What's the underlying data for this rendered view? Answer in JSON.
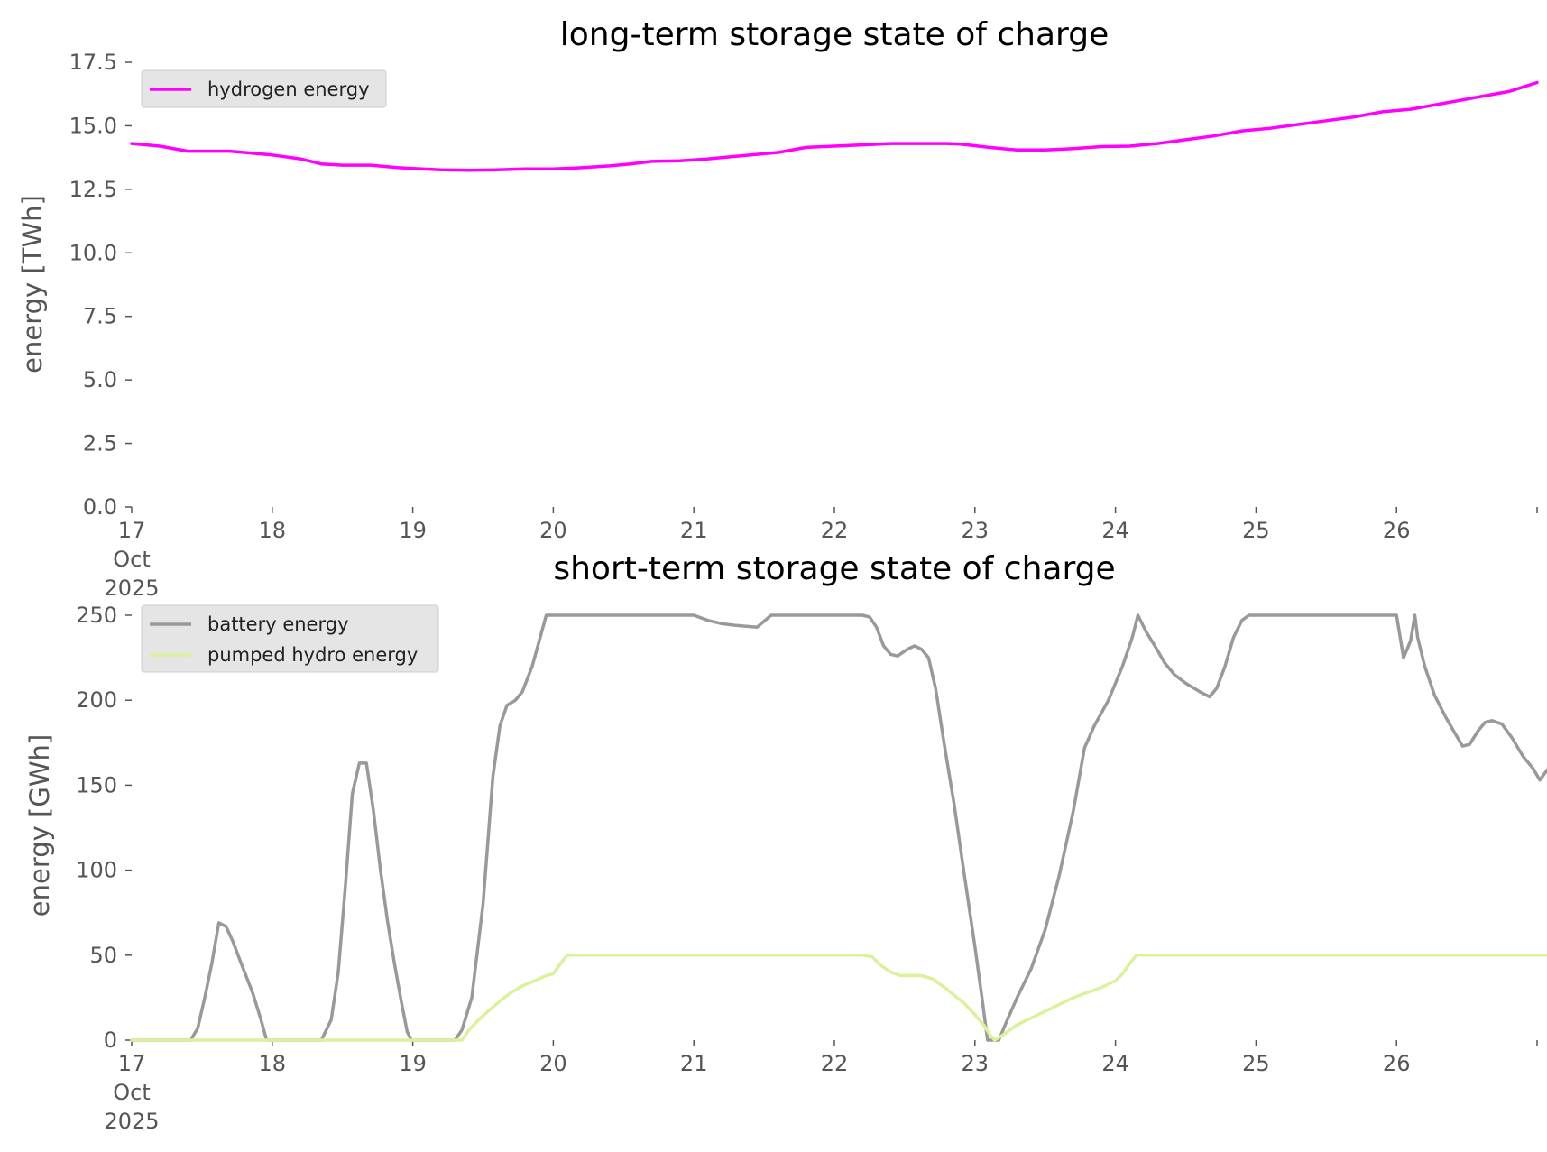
{
  "chart_data": [
    {
      "type": "line",
      "title": "long-term storage state of charge",
      "ylabel": "energy [TWh]",
      "xlabel": "",
      "x_range_days": [
        "2025-10-17",
        "2025-10-27"
      ],
      "xticks": [
        {
          "day": 0,
          "label": "17",
          "sublabels": [
            "Oct",
            "2025"
          ]
        },
        {
          "day": 1,
          "label": "18"
        },
        {
          "day": 2,
          "label": "19"
        },
        {
          "day": 3,
          "label": "20"
        },
        {
          "day": 4,
          "label": "21"
        },
        {
          "day": 5,
          "label": "22"
        },
        {
          "day": 6,
          "label": "23"
        },
        {
          "day": 7,
          "label": "24"
        },
        {
          "day": 8,
          "label": "25"
        },
        {
          "day": 9,
          "label": "26"
        },
        {
          "day": 10,
          "label": ""
        }
      ],
      "ylim": [
        0,
        17.5
      ],
      "yticks": [
        0,
        2.5,
        5,
        7.5,
        10,
        12.5,
        15,
        17.5
      ],
      "ytick_labels": [
        "0.0",
        "2.5",
        "5.0",
        "7.5",
        "10.0",
        "12.5",
        "15.0",
        "17.5"
      ],
      "grid": false,
      "legend": "top-left",
      "series": [
        {
          "name": "hydrogen energy",
          "color": "#ff00ff",
          "points": [
            [
              0,
              14.3
            ],
            [
              0.2,
              14.2
            ],
            [
              0.4,
              14.0
            ],
            [
              0.6,
              14.0
            ],
            [
              0.7,
              14.0
            ],
            [
              0.9,
              13.9
            ],
            [
              1.0,
              13.85
            ],
            [
              1.2,
              13.7
            ],
            [
              1.35,
              13.5
            ],
            [
              1.5,
              13.45
            ],
            [
              1.7,
              13.45
            ],
            [
              1.9,
              13.35
            ],
            [
              2.0,
              13.32
            ],
            [
              2.2,
              13.27
            ],
            [
              2.4,
              13.25
            ],
            [
              2.6,
              13.27
            ],
            [
              2.8,
              13.3
            ],
            [
              3.0,
              13.3
            ],
            [
              3.2,
              13.35
            ],
            [
              3.4,
              13.42
            ],
            [
              3.55,
              13.5
            ],
            [
              3.7,
              13.6
            ],
            [
              3.9,
              13.62
            ],
            [
              4.1,
              13.7
            ],
            [
              4.3,
              13.8
            ],
            [
              4.5,
              13.9
            ],
            [
              4.6,
              13.95
            ],
            [
              4.8,
              14.15
            ],
            [
              5.0,
              14.2
            ],
            [
              5.2,
              14.25
            ],
            [
              5.4,
              14.3
            ],
            [
              5.6,
              14.3
            ],
            [
              5.8,
              14.3
            ],
            [
              5.9,
              14.28
            ],
            [
              6.1,
              14.15
            ],
            [
              6.3,
              14.05
            ],
            [
              6.5,
              14.05
            ],
            [
              6.7,
              14.1
            ],
            [
              6.9,
              14.18
            ],
            [
              7.1,
              14.2
            ],
            [
              7.3,
              14.3
            ],
            [
              7.5,
              14.45
            ],
            [
              7.7,
              14.6
            ],
            [
              7.9,
              14.8
            ],
            [
              8.1,
              14.9
            ],
            [
              8.3,
              15.05
            ],
            [
              8.5,
              15.2
            ],
            [
              8.7,
              15.35
            ],
            [
              8.9,
              15.55
            ],
            [
              9.1,
              15.65
            ],
            [
              9.3,
              15.85
            ],
            [
              9.45,
              16.0
            ],
            [
              9.6,
              16.15
            ],
            [
              9.8,
              16.35
            ],
            [
              10.0,
              16.7
            ]
          ]
        }
      ]
    },
    {
      "type": "line",
      "title": "short-term storage state of charge",
      "ylabel": "energy [GWh]",
      "xlabel": "",
      "x_range_days": [
        "2025-10-17",
        "2025-10-27"
      ],
      "xticks": [
        {
          "day": 0,
          "label": "17",
          "sublabels": [
            "Oct",
            "2025"
          ]
        },
        {
          "day": 1,
          "label": "18"
        },
        {
          "day": 2,
          "label": "19"
        },
        {
          "day": 3,
          "label": "20"
        },
        {
          "day": 4,
          "label": "21"
        },
        {
          "day": 5,
          "label": "22"
        },
        {
          "day": 6,
          "label": "23"
        },
        {
          "day": 7,
          "label": "24"
        },
        {
          "day": 8,
          "label": "25"
        },
        {
          "day": 9,
          "label": "26"
        },
        {
          "day": 10,
          "label": ""
        }
      ],
      "ylim": [
        0,
        250
      ],
      "yticks": [
        0,
        50,
        100,
        150,
        200,
        250
      ],
      "ytick_labels": [
        "0",
        "50",
        "100",
        "150",
        "200",
        "250"
      ],
      "grid": false,
      "legend": "top-left",
      "series": [
        {
          "name": "battery energy",
          "color": "#999999",
          "points": [
            [
              0,
              0
            ],
            [
              0.42,
              0
            ],
            [
              0.47,
              7
            ],
            [
              0.52,
              25
            ],
            [
              0.57,
              45
            ],
            [
              0.62,
              69
            ],
            [
              0.67,
              67
            ],
            [
              0.72,
              58
            ],
            [
              0.78,
              45
            ],
            [
              0.86,
              28
            ],
            [
              0.92,
              12
            ],
            [
              0.96,
              0
            ],
            [
              1.35,
              0
            ],
            [
              1.42,
              12
            ],
            [
              1.47,
              40
            ],
            [
              1.52,
              90
            ],
            [
              1.57,
              145
            ],
            [
              1.62,
              163
            ],
            [
              1.67,
              163
            ],
            [
              1.72,
              135
            ],
            [
              1.77,
              100
            ],
            [
              1.82,
              70
            ],
            [
              1.87,
              45
            ],
            [
              1.92,
              22
            ],
            [
              1.96,
              5
            ],
            [
              1.99,
              0
            ],
            [
              2.3,
              0
            ],
            [
              2.35,
              6
            ],
            [
              2.42,
              25
            ],
            [
              2.5,
              80
            ],
            [
              2.57,
              155
            ],
            [
              2.62,
              185
            ],
            [
              2.67,
              197
            ],
            [
              2.73,
              200
            ],
            [
              2.78,
              205
            ],
            [
              2.85,
              220
            ],
            [
              2.9,
              235
            ],
            [
              2.95,
              250
            ],
            [
              4.0,
              250
            ],
            [
              4.1,
              247
            ],
            [
              4.2,
              245
            ],
            [
              4.3,
              244
            ],
            [
              4.45,
              243
            ],
            [
              4.55,
              250
            ],
            [
              5.2,
              250
            ],
            [
              5.25,
              249
            ],
            [
              5.3,
              243
            ],
            [
              5.35,
              232
            ],
            [
              5.4,
              227
            ],
            [
              5.45,
              226
            ],
            [
              5.52,
              230
            ],
            [
              5.57,
              232
            ],
            [
              5.62,
              230
            ],
            [
              5.67,
              225
            ],
            [
              5.72,
              207
            ],
            [
              5.78,
              175
            ],
            [
              5.85,
              140
            ],
            [
              5.92,
              100
            ],
            [
              6.0,
              55
            ],
            [
              6.05,
              25
            ],
            [
              6.09,
              0
            ],
            [
              6.17,
              0
            ],
            [
              6.22,
              10
            ],
            [
              6.3,
              25
            ],
            [
              6.4,
              42
            ],
            [
              6.5,
              65
            ],
            [
              6.6,
              97
            ],
            [
              6.7,
              135
            ],
            [
              6.78,
              172
            ],
            [
              6.85,
              185
            ],
            [
              6.95,
              200
            ],
            [
              7.05,
              220
            ],
            [
              7.12,
              237
            ],
            [
              7.16,
              250
            ],
            [
              7.22,
              240
            ],
            [
              7.28,
              232
            ],
            [
              7.35,
              222
            ],
            [
              7.42,
              215
            ],
            [
              7.5,
              210
            ],
            [
              7.6,
              205
            ],
            [
              7.67,
              202
            ],
            [
              7.72,
              207
            ],
            [
              7.78,
              220
            ],
            [
              7.84,
              237
            ],
            [
              7.9,
              247
            ],
            [
              7.95,
              250
            ],
            [
              9.0,
              250
            ],
            [
              9.05,
              225
            ],
            [
              9.1,
              235
            ],
            [
              9.13,
              250
            ],
            [
              9.15,
              237
            ],
            [
              9.2,
              220
            ],
            [
              9.27,
              203
            ],
            [
              9.35,
              190
            ],
            [
              9.42,
              180
            ],
            [
              9.47,
              173
            ],
            [
              9.52,
              174
            ],
            [
              9.58,
              182
            ],
            [
              9.63,
              187
            ],
            [
              9.68,
              188
            ],
            [
              9.75,
              186
            ],
            [
              9.82,
              178
            ],
            [
              9.9,
              167
            ],
            [
              9.97,
              160
            ],
            [
              10.02,
              153
            ],
            [
              10.08,
              160
            ],
            [
              10.12,
              200
            ],
            [
              10.18,
              232
            ],
            [
              10.2,
              250
            ]
          ]
        },
        {
          "name": "pumped hydro energy",
          "color": "#d9f29b",
          "points": [
            [
              0,
              0
            ],
            [
              2.35,
              0
            ],
            [
              2.4,
              6
            ],
            [
              2.47,
              12
            ],
            [
              2.55,
              18
            ],
            [
              2.62,
              23
            ],
            [
              2.7,
              28
            ],
            [
              2.78,
              32
            ],
            [
              2.87,
              35
            ],
            [
              2.95,
              38
            ],
            [
              3.0,
              39
            ],
            [
              3.05,
              45
            ],
            [
              3.1,
              50
            ],
            [
              5.2,
              50
            ],
            [
              5.27,
              49
            ],
            [
              5.33,
              44
            ],
            [
              5.4,
              40
            ],
            [
              5.47,
              38
            ],
            [
              5.55,
              38
            ],
            [
              5.62,
              38
            ],
            [
              5.7,
              36
            ],
            [
              5.8,
              30
            ],
            [
              5.92,
              22
            ],
            [
              6.0,
              15
            ],
            [
              6.07,
              8
            ],
            [
              6.1,
              4
            ],
            [
              6.14,
              0
            ],
            [
              6.2,
              3
            ],
            [
              6.3,
              9
            ],
            [
              6.4,
              13
            ],
            [
              6.5,
              17
            ],
            [
              6.6,
              21
            ],
            [
              6.7,
              25
            ],
            [
              6.8,
              28
            ],
            [
              6.9,
              31
            ],
            [
              7.0,
              35
            ],
            [
              7.05,
              39
            ],
            [
              7.1,
              45
            ],
            [
              7.15,
              50
            ],
            [
              10.2,
              50
            ]
          ]
        }
      ]
    }
  ]
}
